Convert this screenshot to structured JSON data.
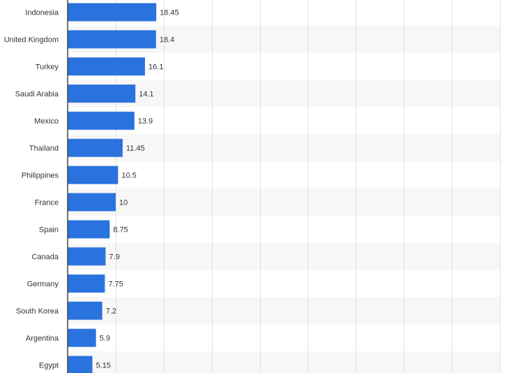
{
  "chart_data": {
    "type": "bar",
    "orientation": "horizontal",
    "categories": [
      "Indonesia",
      "United Kingdom",
      "Turkey",
      "Saudi Arabia",
      "Mexico",
      "Thailand",
      "Philippines",
      "France",
      "Spain",
      "Canada",
      "Germany",
      "South Korea",
      "Argentina",
      "Egypt"
    ],
    "values": [
      18.45,
      18.4,
      16.1,
      14.1,
      13.9,
      11.45,
      10.5,
      10,
      8.75,
      7.9,
      7.75,
      7.2,
      5.9,
      5.15
    ],
    "value_labels": [
      "18.45",
      "18.4",
      "16.1",
      "14.1",
      "13.9",
      "11.45",
      "10.5",
      "10",
      "8.75",
      "7.9",
      "7.75",
      "7.2",
      "5.9",
      "5.15"
    ],
    "xlim": [
      0,
      90
    ],
    "grid": true,
    "bar_color": "#2a72de"
  }
}
